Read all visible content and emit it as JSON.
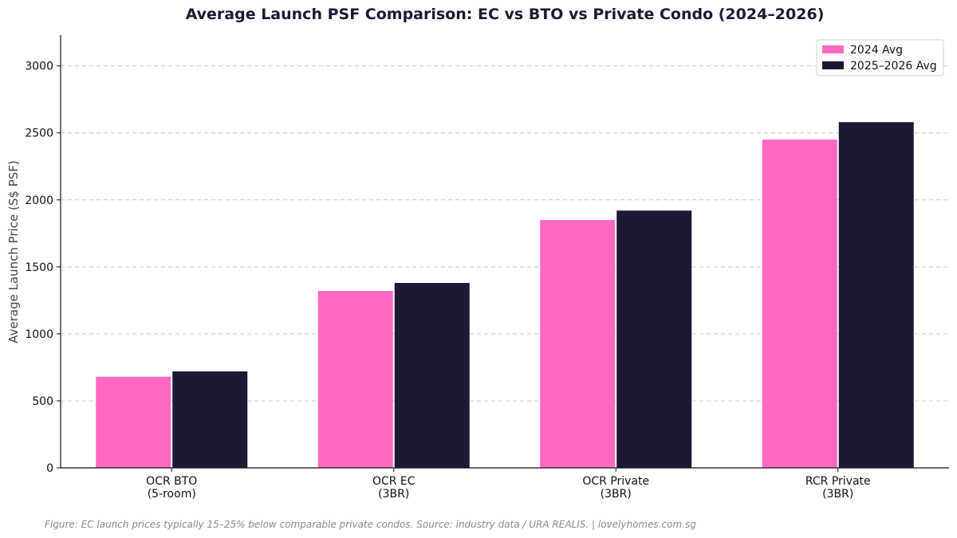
{
  "chart_data": {
    "type": "bar",
    "title": "Average Launch PSF Comparison: EC vs BTO vs Private Condo (2024–2026)",
    "xlabel": "",
    "ylabel": "Average Launch Price (S$ PSF)",
    "categories": [
      [
        "OCR BTO",
        "(5-room)"
      ],
      [
        "OCR EC",
        "(3BR)"
      ],
      [
        "OCR Private",
        "(3BR)"
      ],
      [
        "RCR Private",
        "(3BR)"
      ]
    ],
    "series": [
      {
        "name": "2024 Avg",
        "color": "#ff69c4",
        "values": [
          680,
          1320,
          1850,
          2450
        ]
      },
      {
        "name": "2025–2026 Avg",
        "color": "#1d1935",
        "values": [
          720,
          1380,
          1920,
          2580
        ]
      }
    ],
    "ylim": [
      0,
      3230
    ],
    "yticks": [
      0,
      500,
      1000,
      1500,
      2000,
      2500,
      3000
    ],
    "grid": "y-dashed",
    "legend_position": "top-right",
    "caption": "Figure: EC launch prices typically 15–25% below comparable private condos. Source: industry data / URA REALIS.  |  lovelyhomes.com.sg"
  }
}
